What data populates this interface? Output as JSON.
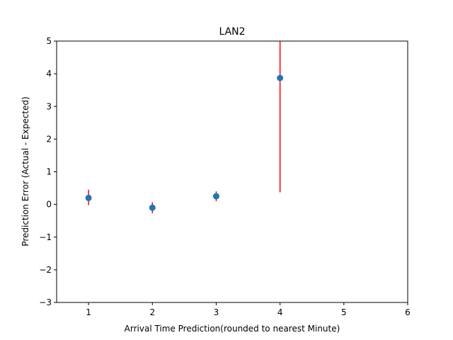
{
  "chart_data": {
    "type": "scatter",
    "title": "LAN2",
    "xlabel": "Arrival Time Prediction(rounded to nearest Minute)",
    "ylabel": "Prediction Error (Actual - Expected)",
    "xlim": [
      0.5,
      6
    ],
    "ylim": [
      -3,
      5
    ],
    "xticks": [
      "1",
      "2",
      "3",
      "4",
      "5",
      "6"
    ],
    "yticks": [
      "−3",
      "−2",
      "−1",
      "0",
      "1",
      "2",
      "3",
      "4",
      "5"
    ],
    "grid": false,
    "points": [
      {
        "x": 1,
        "y": 0.2,
        "err_low": -0.02,
        "err_high": 0.45
      },
      {
        "x": 2,
        "y": -0.1,
        "err_low": -0.27,
        "err_high": 0.07
      },
      {
        "x": 3,
        "y": 0.25,
        "err_low": 0.1,
        "err_high": 0.4
      },
      {
        "x": 4,
        "y": 3.87,
        "err_low": 0.37,
        "err_high": 5.0
      }
    ],
    "marker_color": "#1f77b4",
    "errorbar_color": "#ff0000"
  }
}
